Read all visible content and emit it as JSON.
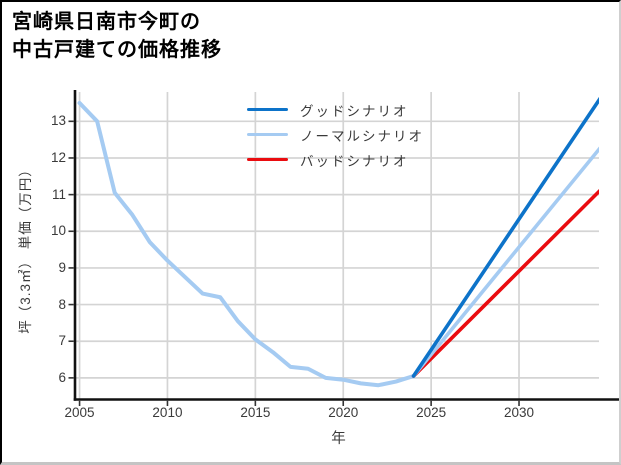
{
  "header": {
    "title_line1": "宮崎県日南市今町の",
    "title_line2": "中古戸建ての価格推移"
  },
  "chart_data": {
    "type": "line",
    "title": "宮崎県日南市今町の中古戸建ての価格推移",
    "xlabel": "年",
    "ylabel": "坪（3.3㎡） 単価（万円）",
    "x_ticks": [
      2005,
      2010,
      2015,
      2020,
      2025,
      2030
    ],
    "y_ticks": [
      6,
      7,
      8,
      9,
      10,
      11,
      12,
      13
    ],
    "xlim": [
      2004.74,
      2034.55
    ],
    "ylim": [
      5.41,
      13.8
    ],
    "grid": true,
    "legend_position": "upper center inside plot, no frame",
    "history": {
      "x": [
        2005,
        2006,
        2007,
        2008,
        2009,
        2010,
        2011,
        2012,
        2013,
        2014,
        2015,
        2016,
        2017,
        2018,
        2019,
        2020,
        2021,
        2022,
        2023,
        2024
      ],
      "values": [
        13.5,
        13.0,
        11.05,
        10.45,
        9.7,
        9.2,
        8.75,
        8.3,
        8.2,
        7.55,
        7.05,
        6.7,
        6.3,
        6.25,
        6.0,
        5.95,
        5.85,
        5.8,
        5.9,
        6.05
      ],
      "color": "#a5cbf2",
      "linewidth": 4
    },
    "scenarios": [
      {
        "label": "グッドシナリオ",
        "color": "#0d73c9",
        "x": [
          2024,
          2035
        ],
        "values": [
          6.05,
          13.9
        ],
        "linewidth": 3.6
      },
      {
        "label": "ノーマルシナリオ",
        "color": "#a5cbf2",
        "x": [
          2024,
          2035
        ],
        "values": [
          6.05,
          12.5
        ],
        "linewidth": 3.6
      },
      {
        "label": "バッドシナリオ",
        "color": "#ea0c10",
        "x": [
          2024,
          2035
        ],
        "values": [
          6.05,
          11.3
        ],
        "linewidth": 3.6
      }
    ]
  },
  "colors": {
    "grid": "#d4d4d4",
    "spine": "#111111",
    "tick": "#333333",
    "tick_text": "#3a3a3a"
  }
}
